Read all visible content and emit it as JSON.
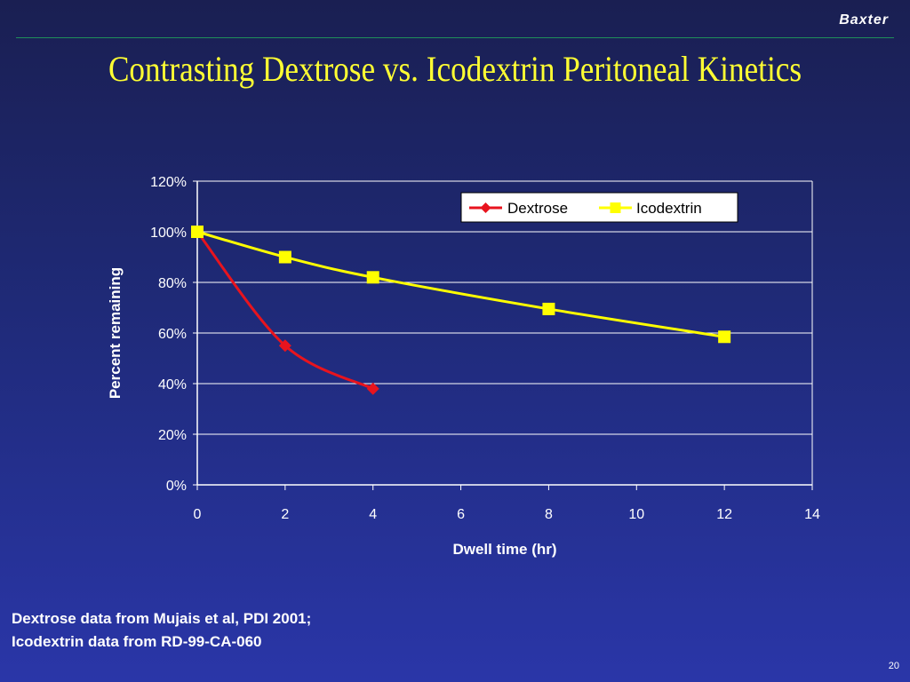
{
  "header": {
    "brand": "Baxter",
    "title": "Contrasting Dextrose vs. Icodextrin Peritoneal Kinetics"
  },
  "footer": {
    "note_line1": "Dextrose data from Mujais et al, PDI 2001;",
    "note_line2": "Icodextrin data from RD-99-CA-060",
    "page_number": "20"
  },
  "colors": {
    "dextrose": "#e8141e",
    "icodextrin": "#ffff00",
    "background": "#1f2a78"
  },
  "chart_data": {
    "type": "line",
    "title": "",
    "xlabel": "Dwell time (hr)",
    "ylabel": "Percent remaining",
    "xlim": [
      0,
      14
    ],
    "ylim": [
      0,
      1.2
    ],
    "x_ticks": [
      0,
      2,
      4,
      6,
      8,
      10,
      12,
      14
    ],
    "y_ticks": [
      0,
      0.2,
      0.4,
      0.6,
      0.8,
      1.0,
      1.2
    ],
    "x_tick_labels": [
      "0",
      "2",
      "4",
      "6",
      "8",
      "10",
      "12",
      "14"
    ],
    "y_tick_labels": [
      "0%",
      "20%",
      "40%",
      "60%",
      "80%",
      "100%",
      "120%"
    ],
    "grid": "horizontal",
    "legend_position": "top-right",
    "series": [
      {
        "name": "Dextrose",
        "marker": "diamond",
        "color": "#e8141e",
        "x": [
          0,
          2,
          4
        ],
        "y": [
          1.0,
          0.55,
          0.38
        ]
      },
      {
        "name": "Icodextrin",
        "marker": "square",
        "color": "#ffff00",
        "x": [
          0,
          2,
          4,
          8,
          12
        ],
        "y": [
          1.0,
          0.9,
          0.82,
          0.695,
          0.585
        ]
      }
    ]
  }
}
